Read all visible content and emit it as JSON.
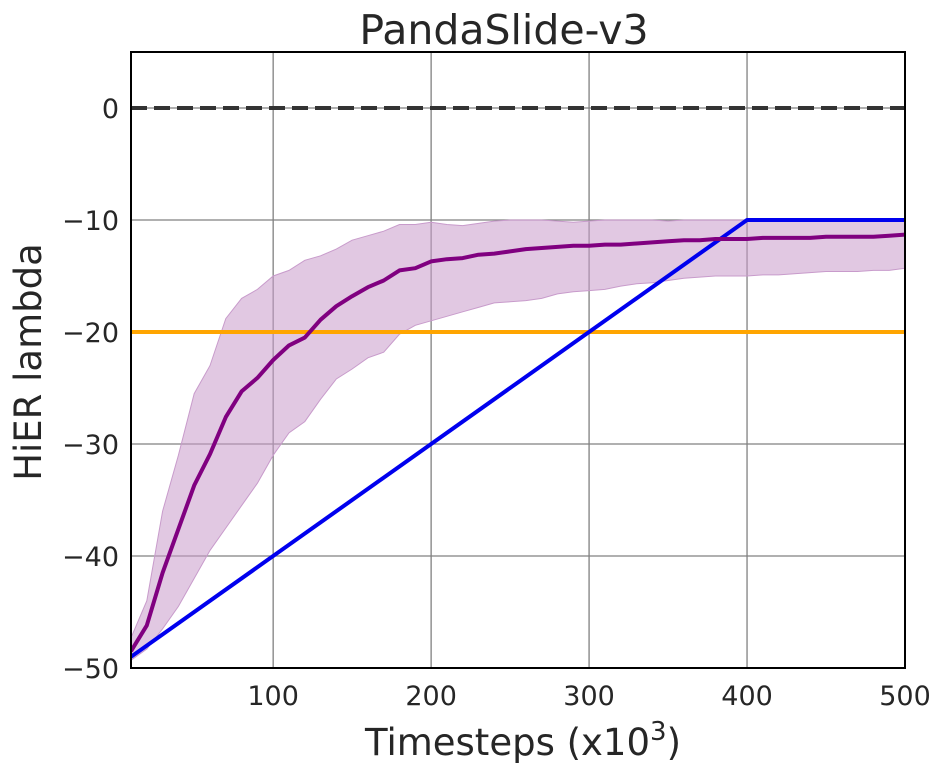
{
  "chart_data": {
    "type": "line",
    "title": "PandaSlide-v3",
    "xlabel": "Timesteps (x10",
    "xlabel_sup": "3",
    "xlabel_close": ")",
    "ylabel": "HiER lambda",
    "xlim": [
      10,
      500
    ],
    "ylim": [
      -50,
      5
    ],
    "xticks": [
      100,
      200,
      300,
      400,
      500
    ],
    "yticks": [
      0,
      -10,
      -20,
      -30,
      -40,
      -50
    ],
    "xtick_labels": [
      "100",
      "200",
      "300",
      "400",
      "500"
    ],
    "ytick_labels": [
      "0",
      "−10",
      "−20",
      "−30",
      "−40",
      "−50"
    ],
    "grid": true,
    "legend": "none",
    "series": [
      {
        "kind": "reference-dashed",
        "color": "#333333",
        "x": [
          10,
          500
        ],
        "y": [
          0,
          0
        ]
      },
      {
        "kind": "constant",
        "color": "#FFA500",
        "x": [
          10,
          500
        ],
        "y": [
          -20,
          -20
        ]
      },
      {
        "kind": "linear-schedule",
        "color": "#0000EE",
        "x": [
          10,
          400,
          500
        ],
        "y": [
          -49,
          -10,
          -10
        ]
      },
      {
        "kind": "mean-with-band",
        "color": "#800080",
        "band_color": "#C89BCB",
        "x": [
          10,
          20,
          30,
          40,
          50,
          60,
          70,
          80,
          90,
          100,
          110,
          120,
          130,
          140,
          150,
          160,
          170,
          180,
          190,
          200,
          210,
          220,
          230,
          240,
          250,
          260,
          270,
          280,
          290,
          300,
          310,
          320,
          330,
          340,
          350,
          360,
          370,
          380,
          390,
          400,
          410,
          420,
          430,
          440,
          450,
          460,
          470,
          480,
          490,
          500
        ],
        "y": [
          -48.5,
          -46.2,
          -41.5,
          -37.6,
          -33.7,
          -30.9,
          -27.6,
          -25.3,
          -24.1,
          -22.5,
          -21.2,
          -20.5,
          -18.9,
          -17.7,
          -16.8,
          -16.0,
          -15.4,
          -14.5,
          -14.3,
          -13.7,
          -13.5,
          -13.4,
          -13.1,
          -13.0,
          -12.8,
          -12.6,
          -12.5,
          -12.4,
          -12.3,
          -12.3,
          -12.2,
          -12.2,
          -12.1,
          -12.0,
          -11.9,
          -11.8,
          -11.8,
          -11.7,
          -11.7,
          -11.7,
          -11.6,
          -11.6,
          -11.6,
          -11.6,
          -11.5,
          -11.5,
          -11.5,
          -11.5,
          -11.4,
          -11.3
        ],
        "lower": [
          -49.3,
          -48.3,
          -46.5,
          -44.5,
          -42.0,
          -39.5,
          -37.5,
          -35.5,
          -33.5,
          -31.0,
          -29.0,
          -28.0,
          -26.0,
          -24.2,
          -23.3,
          -22.3,
          -21.8,
          -20.2,
          -19.4,
          -19.0,
          -18.6,
          -18.2,
          -17.8,
          -17.4,
          -17.3,
          -17.2,
          -17.0,
          -16.6,
          -16.4,
          -16.3,
          -16.2,
          -15.9,
          -15.7,
          -15.6,
          -15.4,
          -15.2,
          -15.1,
          -15.0,
          -15.0,
          -15.0,
          -14.9,
          -14.9,
          -14.8,
          -14.7,
          -14.6,
          -14.6,
          -14.6,
          -14.5,
          -14.5,
          -14.3
        ],
        "upper": [
          -47.3,
          -44.0,
          -36.0,
          -31.0,
          -25.5,
          -23.0,
          -18.8,
          -17.0,
          -16.2,
          -15.0,
          -14.5,
          -13.6,
          -13.2,
          -12.6,
          -11.8,
          -11.4,
          -11.0,
          -10.4,
          -10.4,
          -10.2,
          -10.4,
          -10.5,
          -10.3,
          -10.1,
          -10.0,
          -10.0,
          -10.0,
          -10.1,
          -10.2,
          -10.1,
          -10.0,
          -10.0,
          -10.0,
          -10.0,
          -10.1,
          -10.0,
          -10.0,
          -10.0,
          -10.0,
          -10.0,
          -10.0,
          -10.0,
          -10.0,
          -10.0,
          -10.0,
          -10.0,
          -10.0,
          -10.0,
          -10.0,
          -10.0
        ]
      }
    ]
  }
}
